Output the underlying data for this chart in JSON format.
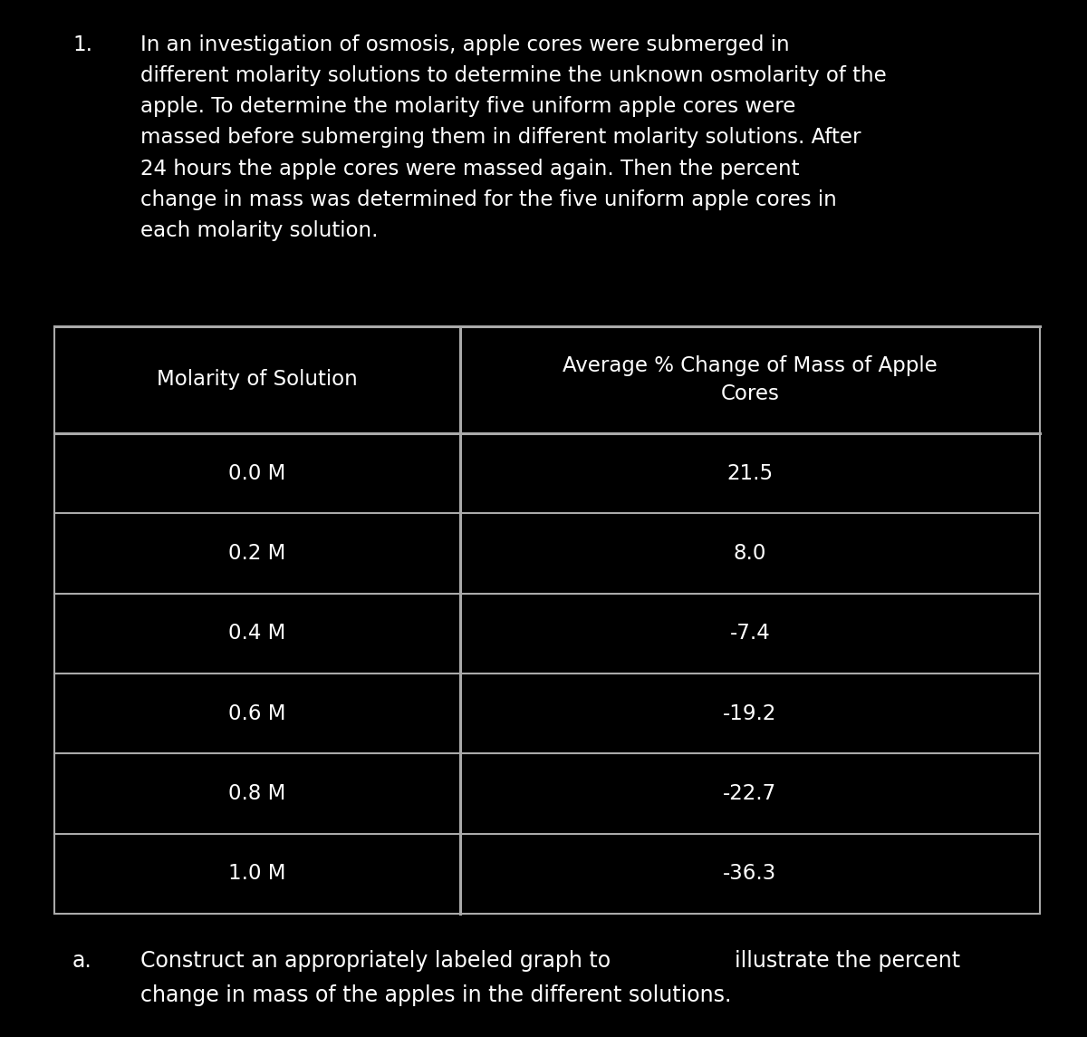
{
  "bg": "#000000",
  "fg": "#ffffff",
  "header_bg": "#1c1c1c",
  "border_color": "#aaaaaa",
  "intro_num": "1.",
  "intro_body": "In an investigation of osmosis, apple cores were submerged in\ndifferent molarity solutions to determine the unknown osmolarity of the\napple. To determine the molarity five uniform apple cores were\nmassed before submerging them in different molarity solutions. After\n24 hours the apple cores were massed again. Then the percent\nchange in mass was determined for the five uniform apple cores in\neach molarity solution.",
  "col1_header": "Molarity of Solution",
  "col2_header": "Average % Change of Mass of Apple\nCores",
  "rows": [
    [
      "0.0 M",
      "21.5"
    ],
    [
      "0.2 M",
      "8.0"
    ],
    [
      "0.4 M",
      "-7.4"
    ],
    [
      "0.6 M",
      "-19.2"
    ],
    [
      "0.8 M",
      "-22.7"
    ],
    [
      "1.0 M",
      "-36.3"
    ]
  ],
  "footer_letter": "a.",
  "footer_part1": "Construct an appropriately labeled graph to",
  "footer_part2": "illustrate the percent",
  "footer_line2": "change in mass of the apples in the different solutions.",
  "green_color": "#1aaa1a",
  "figw": 12.0,
  "figh": 11.44,
  "dpi": 100,
  "intro_font": 16.5,
  "table_font": 16.5,
  "footer_font": 17.0
}
